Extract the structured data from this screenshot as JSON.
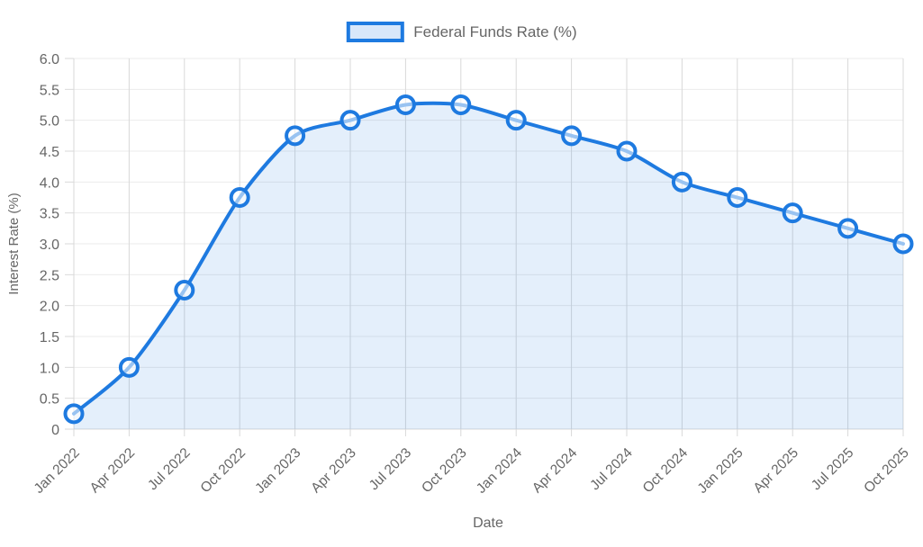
{
  "chart_data": {
    "type": "line",
    "legend": {
      "label": "Federal Funds Rate (%)",
      "position": "top"
    },
    "categories": [
      "Jan 2022",
      "Apr 2022",
      "Jul 2022",
      "Oct 2022",
      "Jan 2023",
      "Apr 2023",
      "Jul 2023",
      "Oct 2023",
      "Jan 2024",
      "Apr 2024",
      "Jul 2024",
      "Oct 2024",
      "Jan 2025",
      "Apr 2025",
      "Jul 2025",
      "Oct 2025"
    ],
    "series": [
      {
        "name": "Federal Funds Rate (%)",
        "values": [
          0.25,
          1.0,
          2.25,
          3.75,
          4.75,
          5.0,
          5.25,
          5.25,
          5.0,
          4.75,
          4.5,
          4.0,
          3.75,
          3.5,
          3.25,
          3.0
        ]
      }
    ],
    "xlabel": "Date",
    "ylabel": "Interest Rate (%)",
    "ylim": [
      0,
      6
    ],
    "ytick_step": 0.5,
    "ytick_labels": [
      "0",
      "0.5",
      "1.0",
      "1.5",
      "2.0",
      "2.5",
      "3.0",
      "3.5",
      "4.0",
      "4.5",
      "5.0",
      "5.5",
      "6.0"
    ],
    "grid": true,
    "colors": {
      "line": "#1e7ae0",
      "area_fill": "rgba(30,122,224,0.12)",
      "legend_fill": "#d8e7fa",
      "marker_fill": "rgba(255,255,255,0.55)",
      "grid_horizontal": "#ebebeb",
      "grid_vertical": "#d9d9d9",
      "axis_line": "#d9d9d9",
      "text": "#666666"
    }
  }
}
